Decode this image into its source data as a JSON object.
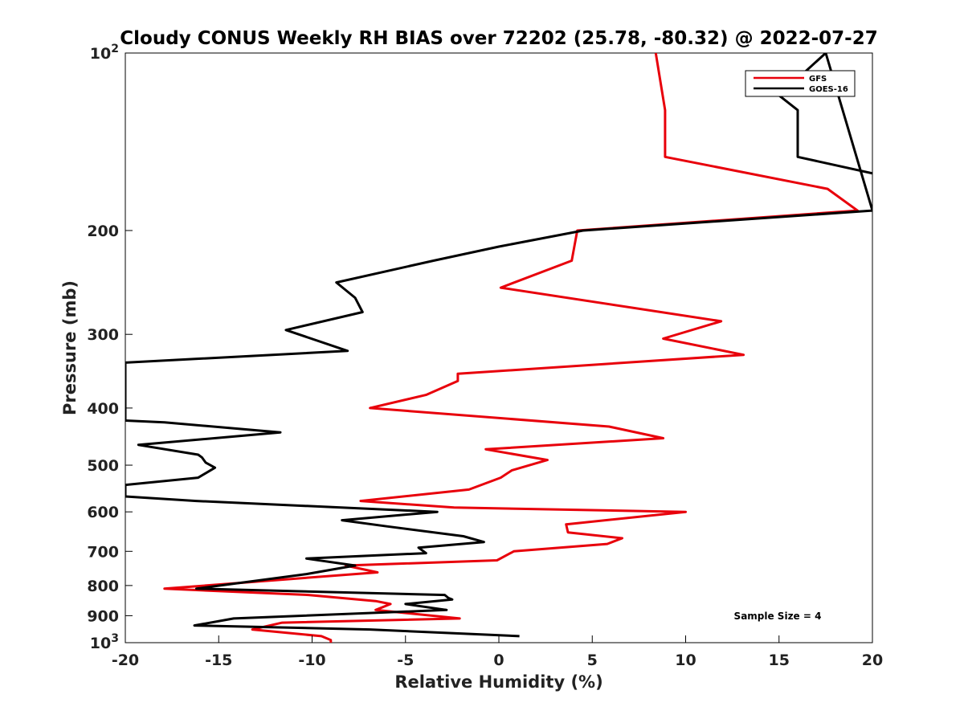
{
  "chart_data": {
    "type": "line",
    "title": "Cloudy CONUS Weekly RH BIAS over 72202 (25.78, -80.32) @ 2022-07-27",
    "xlabel": "Relative Humidity (%)",
    "ylabel": "Pressure (mb)",
    "xlim": [
      -20,
      20
    ],
    "ylim": [
      1000,
      100
    ],
    "yscale": "log",
    "y_reversed": true,
    "grid": false,
    "legend_position": "top-right",
    "x_ticks": [
      -20,
      -15,
      -10,
      -5,
      0,
      5,
      10,
      15,
      20
    ],
    "y_ticks": [
      {
        "value": 100,
        "base": "10",
        "exp": "2"
      },
      {
        "value": 200,
        "label": "200"
      },
      {
        "value": 300,
        "label": "300"
      },
      {
        "value": 400,
        "label": "400"
      },
      {
        "value": 500,
        "label": "500"
      },
      {
        "value": 600,
        "label": "600"
      },
      {
        "value": 700,
        "label": "700"
      },
      {
        "value": 800,
        "label": "800"
      },
      {
        "value": 900,
        "label": "900"
      },
      {
        "value": 1000,
        "base": "10",
        "exp": "3"
      }
    ],
    "annotation": "Sample Size = 4",
    "series": [
      {
        "name": "GFS",
        "color": "#e8000b",
        "points": [
          [
            8.4,
            100
          ],
          [
            8.9,
            125
          ],
          [
            8.9,
            150
          ],
          [
            17.6,
            170
          ],
          [
            19.2,
            185
          ],
          [
            4.2,
            200
          ],
          [
            3.9,
            225
          ],
          [
            0.1,
            250
          ],
          [
            11.9,
            285
          ],
          [
            8.8,
            305
          ],
          [
            13.1,
            325
          ],
          [
            -2.2,
            350
          ],
          [
            -2.2,
            360
          ],
          [
            -3.9,
            380
          ],
          [
            -6.9,
            400
          ],
          [
            5.9,
            430
          ],
          [
            8.8,
            450
          ],
          [
            -0.7,
            470
          ],
          [
            2.6,
            490
          ],
          [
            0.7,
            510
          ],
          [
            0.1,
            525
          ],
          [
            -1.6,
            550
          ],
          [
            -7.4,
            575
          ],
          [
            -2.4,
            590
          ],
          [
            10.0,
            600
          ],
          [
            3.6,
            630
          ],
          [
            3.7,
            650
          ],
          [
            6.6,
            665
          ],
          [
            5.8,
            680
          ],
          [
            0.8,
            700
          ],
          [
            -0.1,
            725
          ],
          [
            -8.2,
            740
          ],
          [
            -6.5,
            760
          ],
          [
            -17.9,
            810
          ],
          [
            -10.2,
            830
          ],
          [
            -6.6,
            850
          ],
          [
            -5.8,
            860
          ],
          [
            -6.6,
            880
          ],
          [
            -2.1,
            910
          ],
          [
            -11.6,
            925
          ],
          [
            -13.2,
            950
          ],
          [
            -9.5,
            975
          ],
          [
            -9.0,
            990
          ],
          [
            -9.0,
            1000
          ]
        ]
      },
      {
        "name": "GOES-16",
        "color": "#000000",
        "points": [
          [
            20.0,
            160
          ],
          [
            16.0,
            150
          ],
          [
            16.0,
            125
          ],
          [
            15.0,
            118
          ],
          [
            17.5,
            100
          ],
          [
            20.0,
            185
          ],
          [
            4.5,
            200
          ],
          [
            0.0,
            213
          ],
          [
            -3.5,
            225
          ],
          [
            -8.7,
            245
          ],
          [
            -7.7,
            260
          ],
          [
            -7.3,
            275
          ],
          [
            -11.4,
            295
          ],
          [
            -8.1,
            320
          ],
          [
            -20.0,
            335
          ],
          [
            -20.0,
            420
          ],
          [
            -17.9,
            423
          ],
          [
            -11.7,
            440
          ],
          [
            -19.3,
            462
          ],
          [
            -16.1,
            480
          ],
          [
            -15.9,
            485
          ],
          [
            -15.7,
            495
          ],
          [
            -15.2,
            505
          ],
          [
            -16.1,
            525
          ],
          [
            -20.0,
            540
          ],
          [
            -20.0,
            565
          ],
          [
            -16.2,
            575
          ],
          [
            -3.3,
            600
          ],
          [
            -8.4,
            620
          ],
          [
            -6.0,
            635
          ],
          [
            -1.9,
            660
          ],
          [
            -0.8,
            675
          ],
          [
            -4.3,
            690
          ],
          [
            -3.9,
            705
          ],
          [
            -10.3,
            720
          ],
          [
            -7.7,
            740
          ],
          [
            -10.3,
            765
          ],
          [
            -16.2,
            810
          ],
          [
            -2.9,
            830
          ],
          [
            -2.7,
            840
          ],
          [
            -2.5,
            845
          ],
          [
            -5.0,
            860
          ],
          [
            -2.8,
            880
          ],
          [
            -14.2,
            910
          ],
          [
            -16.3,
            935
          ],
          [
            -6.9,
            950
          ],
          [
            1.1,
            975
          ]
        ]
      }
    ]
  }
}
